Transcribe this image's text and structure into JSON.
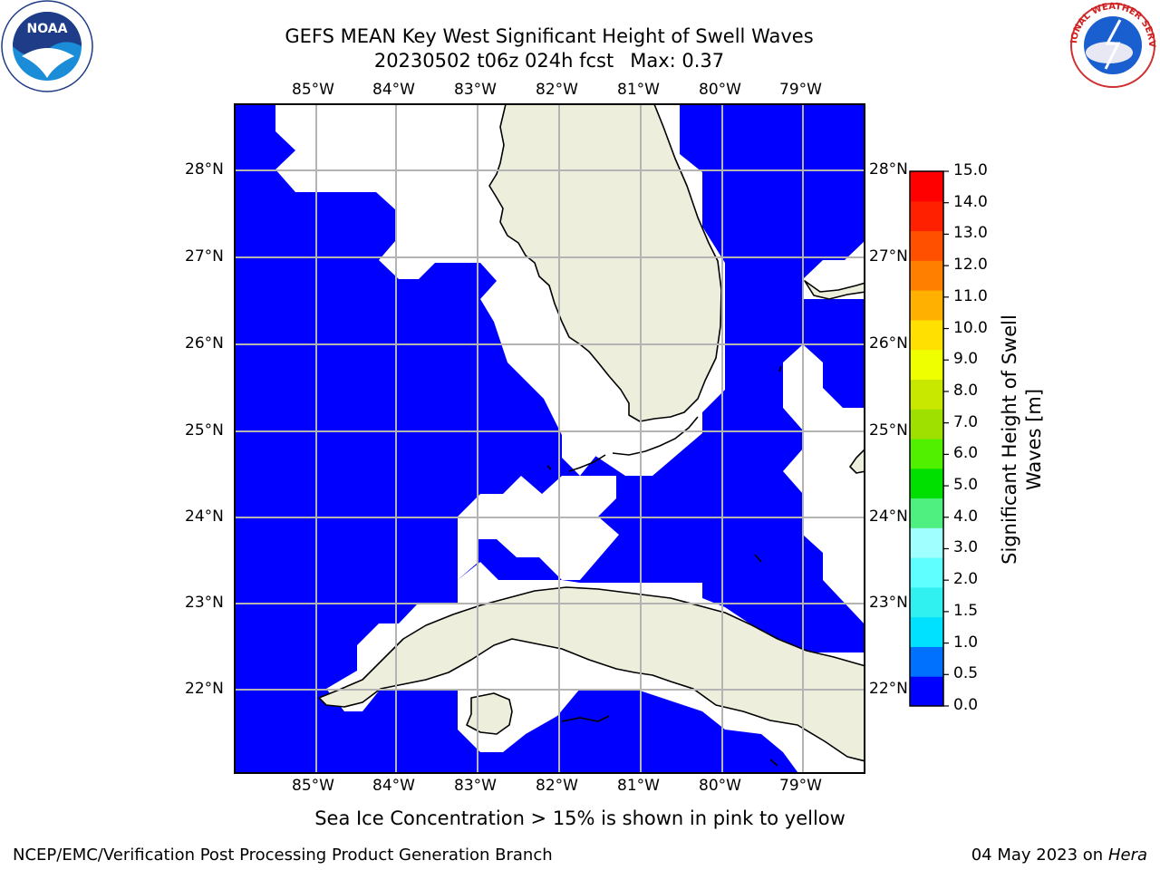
{
  "title": {
    "line1": "GEFS MEAN Key West Significant Height of Swell Waves",
    "line2_run": "20230502 t06z 024h fcst",
    "line2_max": "Max: 0.37"
  },
  "map": {
    "lon_ticks": [
      "85°W",
      "84°W",
      "83°W",
      "82°W",
      "81°W",
      "80°W",
      "79°W"
    ],
    "lat_ticks": [
      "28°N",
      "27°N",
      "26°N",
      "25°N",
      "24°N",
      "23°N",
      "22°N"
    ],
    "ocean_color": "#0000ff",
    "land_color": "#eeeedd",
    "grid_color": "#b4b4b4"
  },
  "colorbar": {
    "label": "Significant Height of Swell Waves [m]",
    "levels": [
      "0.0",
      "0.5",
      "1.0",
      "1.5",
      "2.0",
      "3.0",
      "4.0",
      "5.0",
      "6.0",
      "7.0",
      "8.0",
      "9.0",
      "10.0",
      "11.0",
      "12.0",
      "13.0",
      "14.0",
      "15.0"
    ],
    "colors": [
      "#0000ff",
      "#0070ff",
      "#00e0ff",
      "#30f0f0",
      "#60ffff",
      "#a0ffff",
      "#50f080",
      "#00e000",
      "#50f000",
      "#a0e000",
      "#c8e800",
      "#f0ff00",
      "#ffe000",
      "#ffb000",
      "#ff8000",
      "#ff5000",
      "#ff2000",
      "#ff0000"
    ]
  },
  "logos": {
    "noaa_text": "NOAA",
    "nws_text": "NATIONAL WEATHER SERVICE"
  },
  "footer": {
    "sea_ice_note": "Sea Ice Concentration > 15% is shown in pink to yellow",
    "credit": "NCEP/EMC/Verification Post Processing Product Generation Branch",
    "date": "04 May 2023 on",
    "host": "Hera"
  }
}
